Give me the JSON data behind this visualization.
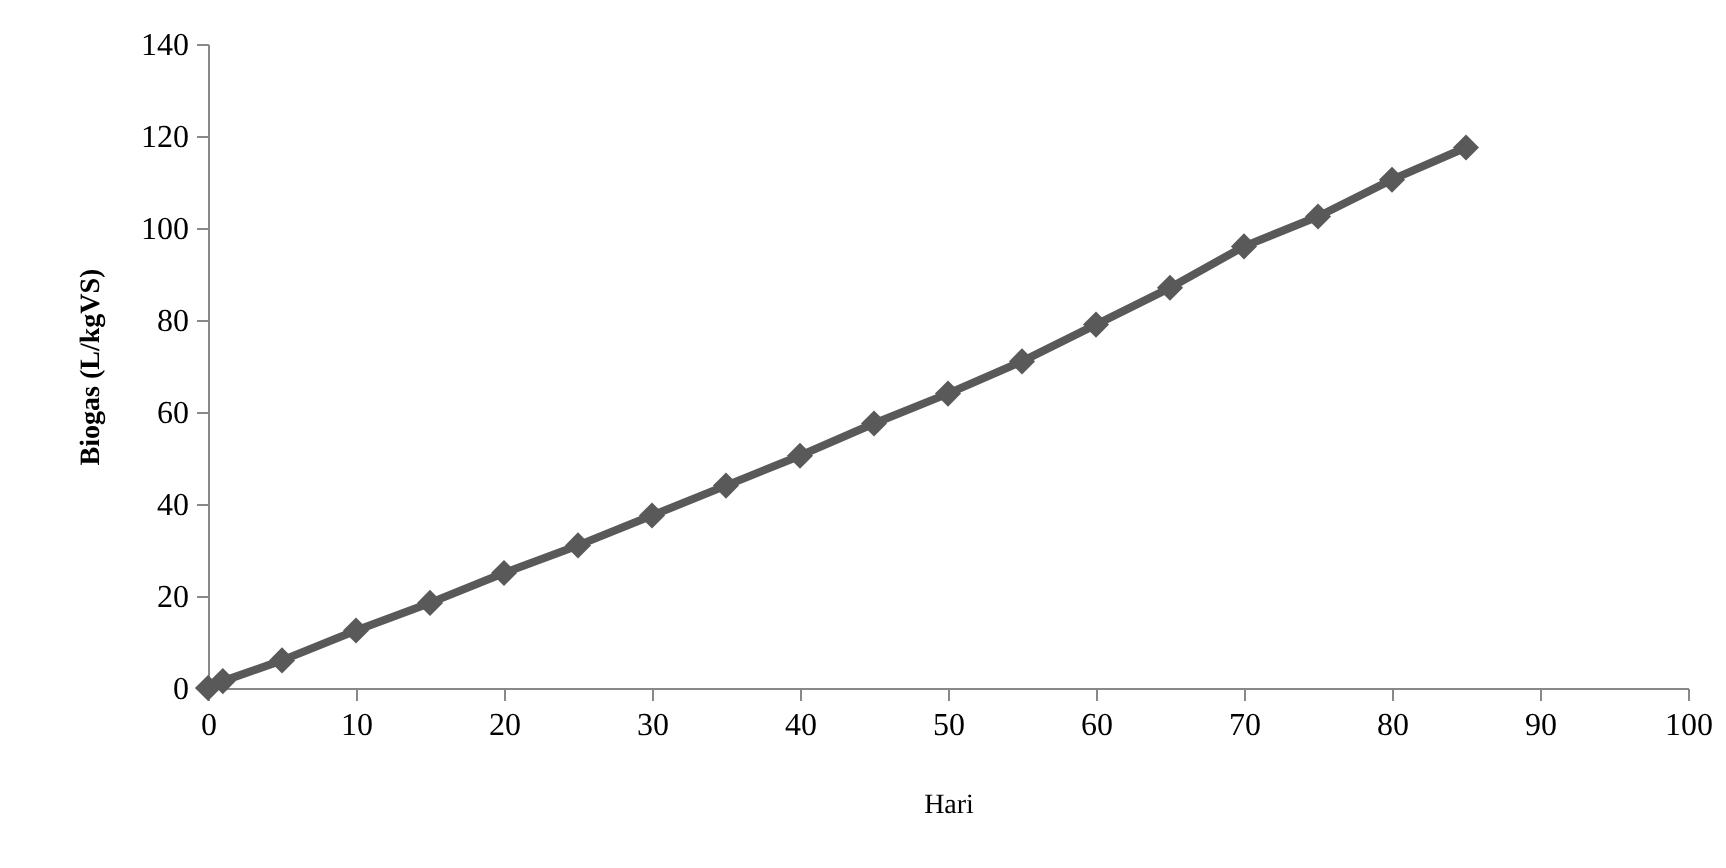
{
  "chart_data": {
    "type": "line",
    "xlabel": "Hari",
    "ylabel": "Biogas (L/kgVS)",
    "x": [
      0,
      1,
      5,
      10,
      15,
      20,
      25,
      30,
      35,
      40,
      45,
      50,
      55,
      60,
      65,
      70,
      75,
      80,
      85
    ],
    "series": [
      {
        "color": "#595959",
        "values": [
          0,
          1.5,
          6,
          12.5,
          18.5,
          25,
          31,
          37.5,
          44,
          50.5,
          57.5,
          64,
          71,
          79,
          87,
          96,
          102.5,
          110.5,
          117.5
        ]
      }
    ],
    "xlim": [
      0,
      100
    ],
    "xticks": [
      0,
      10,
      20,
      30,
      40,
      50,
      60,
      70,
      80,
      90,
      100
    ],
    "ylim": [
      0,
      140
    ],
    "yticks": [
      0,
      20,
      40,
      60,
      80,
      100,
      120,
      140
    ],
    "marker": "diamond",
    "line_style": "solid"
  }
}
